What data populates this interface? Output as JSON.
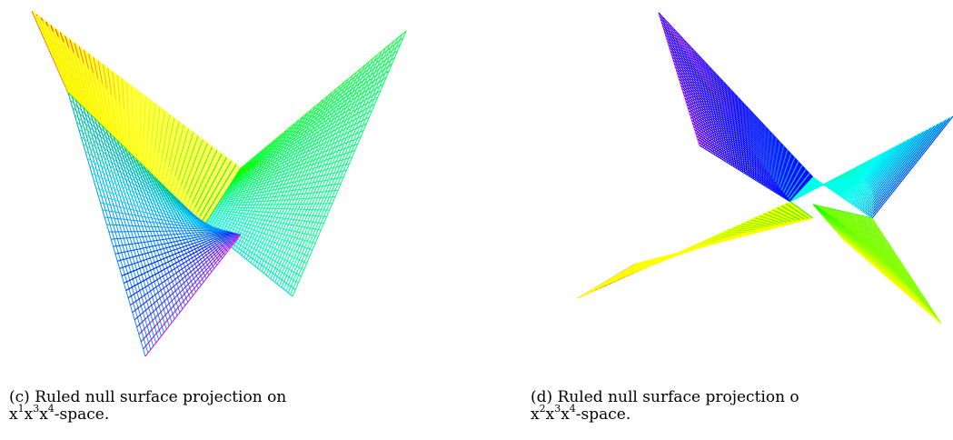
{
  "figures": [
    {
      "id": "c",
      "caption_label": "(c)",
      "caption_text": "Ruled null surface projection on",
      "space_label": {
        "base": "x",
        "exponents": [
          "1",
          "3",
          "4"
        ],
        "suffix": "-space."
      },
      "colormap": "hsv rainbow (red → yellow → green → cyan → blue → magenta)"
    },
    {
      "id": "d",
      "caption_label": "(d)",
      "caption_text": "Ruled null surface projection o",
      "space_label": {
        "base": "x",
        "exponents": [
          "2",
          "3",
          "4"
        ],
        "suffix": "-space."
      },
      "colormap": "hsv rainbow (red → yellow → green → cyan → blue → magenta)"
    }
  ],
  "colors": {
    "red": "#ff0000",
    "yellow": "#ffff00",
    "green": "#00ff00",
    "cyan": "#00ffff",
    "blue": "#0000ff",
    "magenta": "#ff00ff"
  }
}
